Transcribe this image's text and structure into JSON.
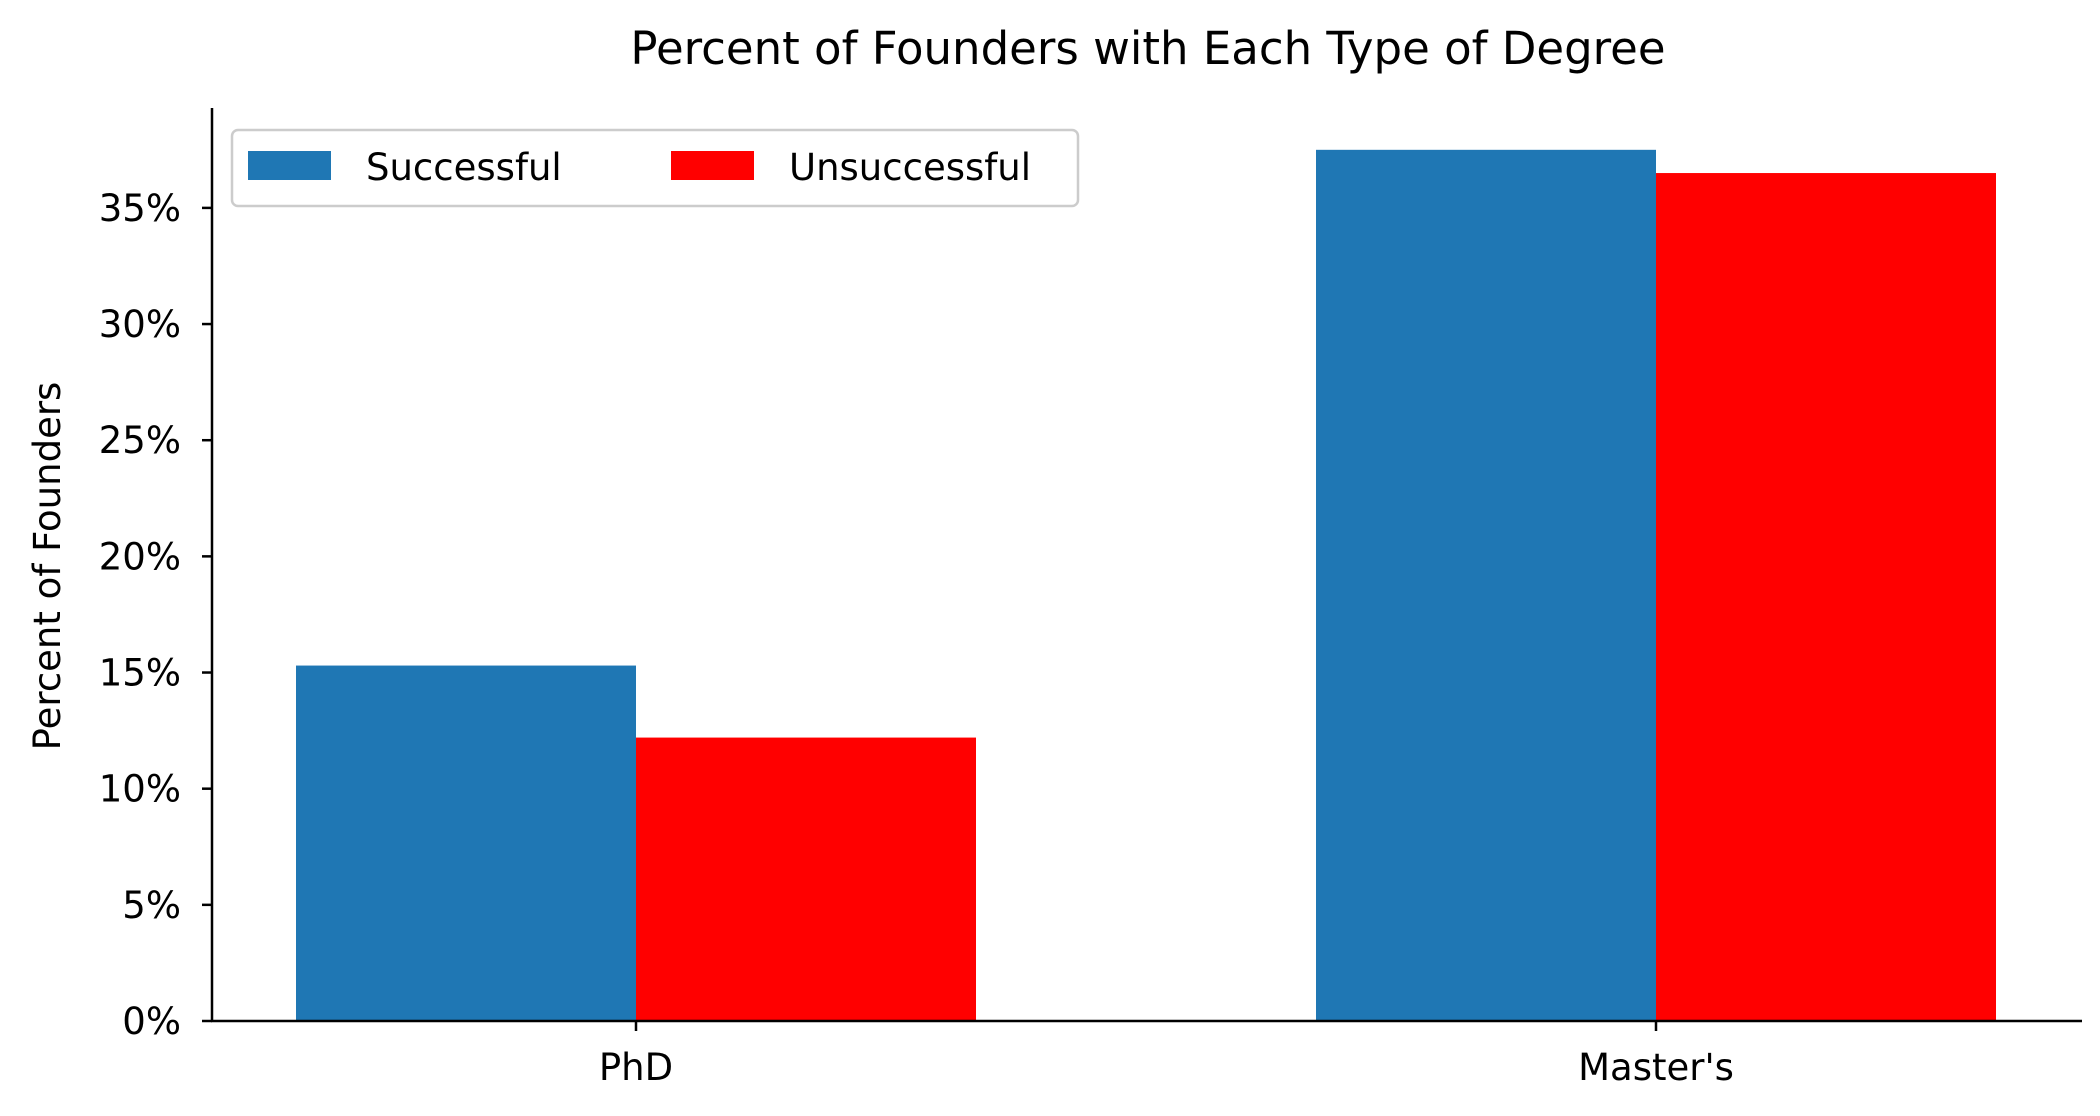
{
  "chart_data": {
    "type": "bar",
    "title": "Percent of Founders with Each Type of Degree",
    "xlabel": "",
    "ylabel": "Percent of Founders",
    "categories": [
      "PhD",
      "Master's"
    ],
    "series": [
      {
        "name": "Successful",
        "values": [
          15.3,
          37.5
        ],
        "color": "#1f77b4"
      },
      {
        "name": "Unsuccessful",
        "values": [
          12.2,
          36.5
        ],
        "color": "#ff0000"
      }
    ],
    "ylim": [
      0,
      39.3
    ],
    "yticks": [
      0,
      5,
      10,
      15,
      20,
      25,
      30,
      35
    ],
    "ytick_labels": [
      "0%",
      "5%",
      "10%",
      "15%",
      "20%",
      "25%",
      "30%",
      "35%"
    ],
    "grid": false,
    "legend_position": "top-left"
  }
}
